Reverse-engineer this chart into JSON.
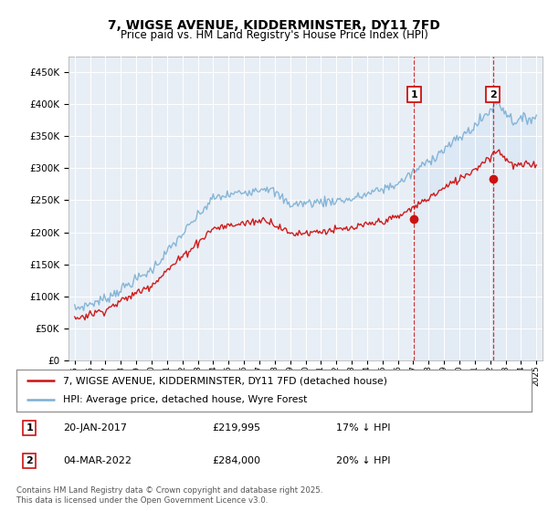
{
  "title": "7, WIGSE AVENUE, KIDDERMINSTER, DY11 7FD",
  "subtitle": "Price paid vs. HM Land Registry's House Price Index (HPI)",
  "legend_line1": "7, WIGSE AVENUE, KIDDERMINSTER, DY11 7FD (detached house)",
  "legend_line2": "HPI: Average price, detached house, Wyre Forest",
  "sale1_date": "20-JAN-2017",
  "sale1_price": "£219,995",
  "sale1_note": "17% ↓ HPI",
  "sale2_date": "04-MAR-2022",
  "sale2_price": "£284,000",
  "sale2_note": "20% ↓ HPI",
  "footer": "Contains HM Land Registry data © Crown copyright and database right 2025.\nThis data is licensed under the Open Government Licence v3.0.",
  "hpi_color": "#7bafd4",
  "price_color": "#cc1111",
  "vline_color": "#cc1111",
  "shade_color": "#dce8f5",
  "background_color": "#e8eef5",
  "sale1_year": 2017.05,
  "sale2_year": 2022.17,
  "sale1_price_val": 219995,
  "sale2_price_val": 284000,
  "ylim": [
    0,
    475000
  ],
  "xlim_start": 1994.6,
  "xlim_end": 2025.4
}
